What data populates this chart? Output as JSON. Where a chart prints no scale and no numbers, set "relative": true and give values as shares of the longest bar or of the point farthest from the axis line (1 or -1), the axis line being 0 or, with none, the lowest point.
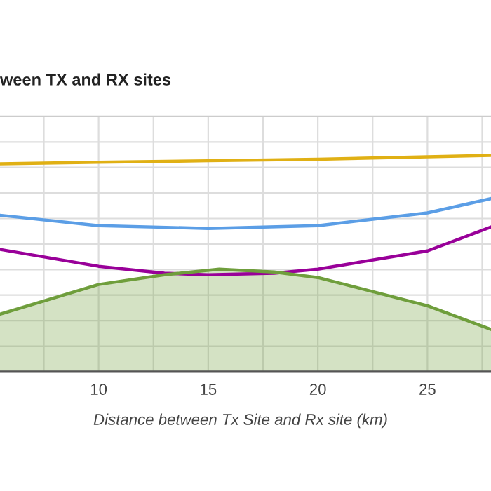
{
  "chart_data": {
    "type": "line",
    "title": "ween TX and RX sites",
    "xlabel": "Distance between Tx Site and Rx site (km)",
    "relative": true,
    "grid": true,
    "legend": false,
    "marker": "none",
    "xlim": [
      5.5,
      27.9
    ],
    "xticks": [
      {
        "value": 7.5,
        "label": null
      },
      10,
      {
        "value": 12.5,
        "label": null
      },
      15,
      {
        "value": 17.5,
        "label": null
      },
      20,
      {
        "value": 22.5,
        "label": null
      },
      25,
      {
        "value": 27.5,
        "label": null
      }
    ],
    "series": [
      {
        "color": "#e0b014",
        "x": [
          5.5,
          10,
          15,
          20,
          25,
          27.9
        ],
        "values": [
          0.961,
          0.968,
          0.975,
          0.982,
          0.993,
          1
        ]
      },
      {
        "color": "#5b9ee6",
        "x": [
          5.5,
          10,
          15,
          20,
          25,
          27.9
        ],
        "values": [
          0.723,
          0.675,
          0.662,
          0.675,
          0.734,
          0.8
        ]
      },
      {
        "color": "#990099",
        "x": [
          5.5,
          10,
          13,
          15,
          18,
          20,
          25,
          27.9
        ],
        "values": [
          0.565,
          0.487,
          0.455,
          0.448,
          0.455,
          0.474,
          0.558,
          0.669
        ]
      },
      {
        "type": "area",
        "color": "#6f9e3c",
        "x": [
          5.5,
          10,
          13,
          15.5,
          18,
          20,
          25,
          27.9
        ],
        "values": [
          0.266,
          0.403,
          0.448,
          0.474,
          0.461,
          0.435,
          0.305,
          0.195
        ]
      }
    ]
  }
}
